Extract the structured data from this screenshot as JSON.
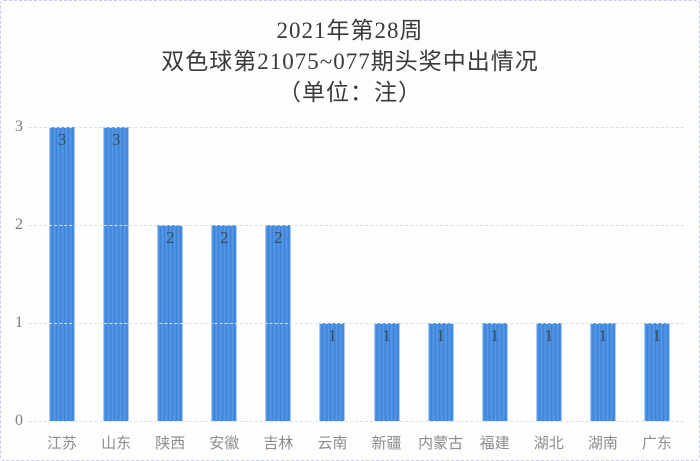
{
  "title": {
    "line1": "2021年第28周",
    "line2": "双色球第21075~077期头奖中出情况",
    "line3": "（单位：注）"
  },
  "chart_data": {
    "type": "bar",
    "title": "2021年第28周 双色球第21075~077期头奖中出情况（单位：注）",
    "unit": "注",
    "categories": [
      "江苏",
      "山东",
      "陕西",
      "安徽",
      "吉林",
      "云南",
      "新疆",
      "内蒙古",
      "福建",
      "湖北",
      "湖南",
      "广东"
    ],
    "values": [
      3,
      3,
      2,
      2,
      2,
      1,
      1,
      1,
      1,
      1,
      1,
      1
    ],
    "xlabel": "",
    "ylabel": "",
    "ylim": [
      0,
      3
    ],
    "yticks": [
      0,
      1,
      2,
      3
    ],
    "grid": true,
    "gridline_style": "dashed",
    "legend": "none",
    "bar_color": "#5598e6",
    "bar_stripe_color": "#3d85da",
    "value_label_color": "#3b4a55",
    "axis_tick_color": "#7c7c7c",
    "x_label_color": "#8d8d8d",
    "gridline_color": "#d9e2df",
    "frame_border_color": "#c9c9ef"
  }
}
